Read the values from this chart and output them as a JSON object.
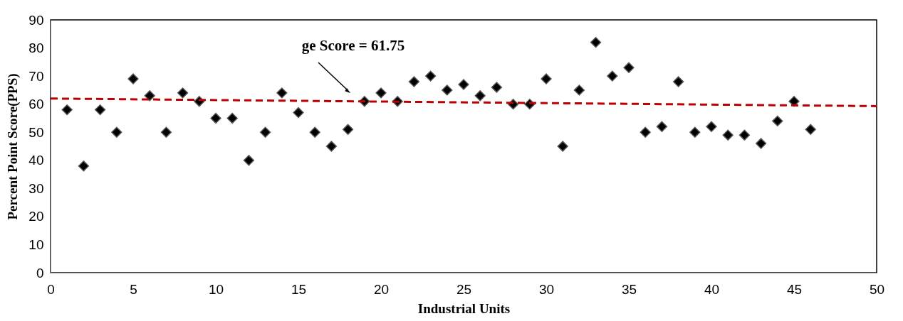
{
  "chart_data": {
    "type": "scatter",
    "xlabel": "Industrial Units",
    "ylabel": "Percent Point Score(PPS)",
    "xlim": [
      0,
      50
    ],
    "xticks": [
      0,
      5,
      10,
      15,
      20,
      25,
      30,
      35,
      40,
      45,
      50
    ],
    "ylim": [
      0,
      90
    ],
    "yticks": [
      0,
      10,
      20,
      30,
      40,
      50,
      60,
      70,
      80,
      90
    ],
    "grid": false,
    "series": [
      {
        "color": "#000000",
        "marker": "diamond",
        "x": [
          1,
          2,
          3,
          4,
          5,
          6,
          7,
          8,
          9,
          10,
          11,
          12,
          13,
          14,
          15,
          16,
          17,
          18,
          19,
          20,
          21,
          22,
          23,
          24,
          25,
          26,
          27,
          28,
          29,
          30,
          31,
          32,
          33,
          34,
          35,
          36,
          37,
          38,
          39,
          40,
          41,
          42,
          43,
          44,
          45,
          46
        ],
        "values": [
          58,
          38,
          58,
          50,
          69,
          63,
          50,
          64,
          61,
          55,
          55,
          40,
          50,
          64,
          57,
          50,
          45,
          51,
          61,
          64,
          61,
          68,
          70,
          65,
          67,
          63,
          66,
          60,
          60,
          69,
          45,
          65,
          82,
          70,
          73,
          50,
          52,
          68,
          50,
          52,
          49,
          49,
          46,
          54,
          61,
          51
        ]
      },
      {
        "type": "line",
        "color": "#c00000",
        "line_style": "dashed",
        "marker": "none",
        "x": [
          0,
          50
        ],
        "values": [
          62,
          59.3
        ]
      }
    ],
    "annotations": [
      "ge Score = 61.75"
    ]
  }
}
